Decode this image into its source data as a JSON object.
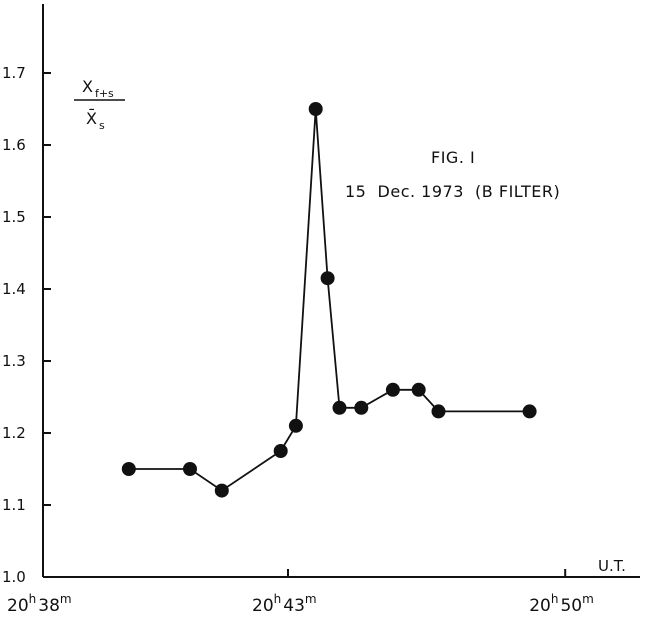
{
  "chart_data": {
    "type": "line",
    "ylabel": "X f+s / X̄ s",
    "ylabel_num": "X",
    "ylabel_num_sub": "f+s",
    "ylabel_den": "X̄",
    "ylabel_den_sub": "s",
    "xlabel": "U.T.",
    "title": "FIG. I",
    "subtitle": "15  Dec. 1973  (B FILTER)",
    "ylim": [
      1.0,
      1.75
    ],
    "yticks": [
      1.0,
      1.1,
      1.2,
      1.3,
      1.4,
      1.5,
      1.6,
      1.7
    ],
    "ytick_labels": [
      "1.0",
      "1.1",
      "1.2",
      "1.3",
      "1.4",
      "1.5",
      "1.6",
      "1.7"
    ],
    "xlim": [
      38,
      51.5
    ],
    "xticks": [
      {
        "value": 38,
        "hour": "20",
        "unit_h": "h",
        "minute": "38",
        "unit_m": "m"
      },
      {
        "value": 43,
        "hour": "20",
        "unit_h": "h",
        "minute": "43",
        "unit_m": "m"
      },
      {
        "value": 50,
        "hour": "20",
        "unit_h": "h",
        "minute": "50",
        "unit_m": "m"
      }
    ],
    "grid": false,
    "series": [
      {
        "x": [
          39.75,
          41.0,
          41.65,
          42.85,
          43.2,
          43.7,
          44.0,
          44.3,
          44.85,
          45.65,
          46.3,
          46.8,
          49.1
        ],
        "y": [
          1.15,
          1.15,
          1.12,
          1.175,
          1.21,
          1.65,
          1.415,
          1.235,
          1.235,
          1.26,
          1.26,
          1.23,
          1.23
        ],
        "line_color": "#111111",
        "marker_color": "#111111"
      }
    ]
  }
}
